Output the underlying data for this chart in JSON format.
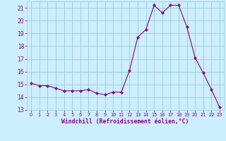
{
  "x": [
    0,
    1,
    2,
    3,
    4,
    5,
    6,
    7,
    8,
    9,
    10,
    11,
    12,
    13,
    14,
    15,
    16,
    17,
    18,
    19,
    20,
    21,
    22,
    23
  ],
  "y": [
    15.1,
    14.9,
    14.9,
    14.7,
    14.5,
    14.5,
    14.5,
    14.6,
    14.3,
    14.2,
    14.4,
    14.4,
    16.1,
    18.7,
    19.3,
    21.2,
    20.6,
    21.2,
    21.2,
    19.5,
    17.1,
    15.9,
    14.6,
    13.2
  ],
  "line_color": "#880088",
  "marker": "D",
  "marker_size": 2.2,
  "bg_color": "#cceeff",
  "grid_color": "#99cccc",
  "xlabel": "Windchill (Refroidissement éolien,°C)",
  "xlabel_color": "#880088",
  "tick_color": "#880088",
  "ylim": [
    13,
    21.5
  ],
  "xlim": [
    -0.5,
    23.5
  ],
  "yticks": [
    13,
    14,
    15,
    16,
    17,
    18,
    19,
    20,
    21
  ],
  "xticks": [
    0,
    1,
    2,
    3,
    4,
    5,
    6,
    7,
    8,
    9,
    10,
    11,
    12,
    13,
    14,
    15,
    16,
    17,
    18,
    19,
    20,
    21,
    22,
    23
  ],
  "xtick_labels": [
    "0",
    "1",
    "2",
    "3",
    "4",
    "5",
    "6",
    "7",
    "8",
    "9",
    "10",
    "11",
    "12",
    "13",
    "14",
    "15",
    "16",
    "17",
    "18",
    "19",
    "20",
    "21",
    "22",
    "23"
  ]
}
